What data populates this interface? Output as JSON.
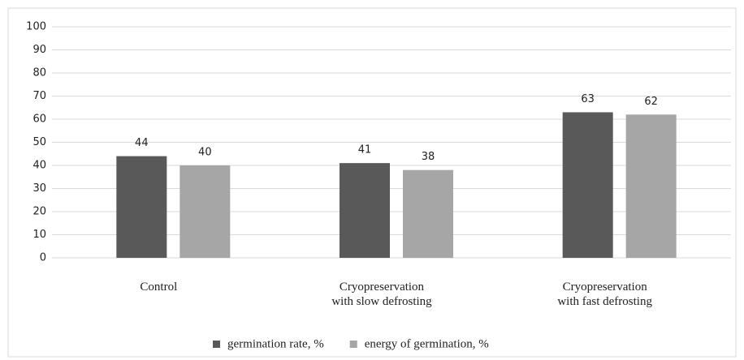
{
  "chart_data": {
    "type": "bar",
    "categories": [
      "Control",
      "Cryopreservation\nwith slow defrosting",
      "Cryopreservation\nwith fast defrosting"
    ],
    "series": [
      {
        "name": "germination rate, %",
        "color": "#595959",
        "values": [
          44,
          41,
          63
        ]
      },
      {
        "name": "energy of germination, %",
        "color": "#a6a6a6",
        "values": [
          40,
          38,
          62
        ]
      }
    ],
    "ylim": [
      0,
      100
    ],
    "yticks": [
      0,
      10,
      20,
      30,
      40,
      50,
      60,
      70,
      80,
      90,
      100
    ],
    "grid": true,
    "legend": "bottom"
  }
}
